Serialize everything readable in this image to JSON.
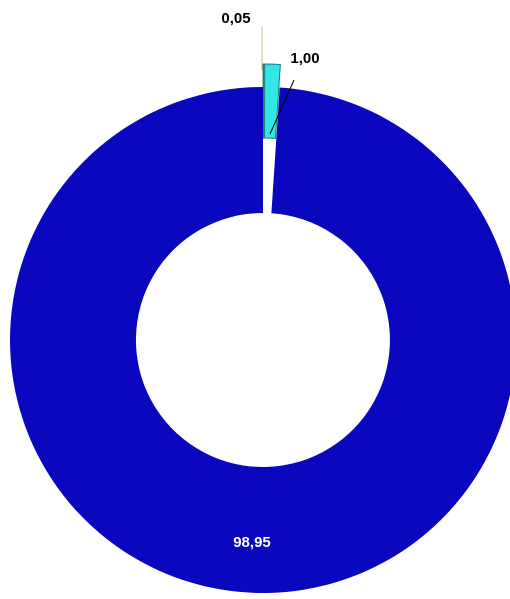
{
  "chart_data": {
    "type": "pie",
    "variant": "donut",
    "slices": [
      {
        "label": "0,05",
        "value": 0.05,
        "color": "#FFFFE0",
        "exploded": true,
        "leader_line": true,
        "label_color": "#000000"
      },
      {
        "label": "1,00",
        "value": 1.0,
        "color": "#33E6E6",
        "exploded": true,
        "leader_line": true,
        "label_color": "#000000"
      },
      {
        "label": "98,95",
        "value": 98.95,
        "color": "#0A08BF",
        "exploded": false,
        "leader_line": false,
        "label_color": "#FFFFFF"
      }
    ]
  }
}
